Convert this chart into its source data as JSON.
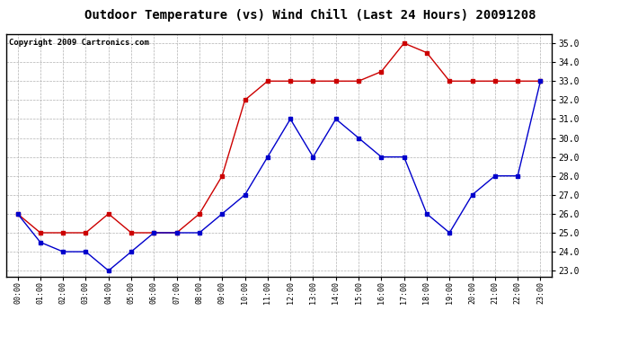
{
  "title": "Outdoor Temperature (vs) Wind Chill (Last 24 Hours) 20091208",
  "copyright": "Copyright 2009 Cartronics.com",
  "x_labels": [
    "00:00",
    "01:00",
    "02:00",
    "03:00",
    "04:00",
    "05:00",
    "06:00",
    "07:00",
    "08:00",
    "09:00",
    "10:00",
    "11:00",
    "12:00",
    "13:00",
    "14:00",
    "15:00",
    "16:00",
    "17:00",
    "18:00",
    "19:00",
    "20:00",
    "21:00",
    "22:00",
    "23:00"
  ],
  "temp_red": [
    26.0,
    25.0,
    25.0,
    25.0,
    26.0,
    25.0,
    25.0,
    25.0,
    26.0,
    28.0,
    32.0,
    33.0,
    33.0,
    33.0,
    33.0,
    33.0,
    33.5,
    35.0,
    34.5,
    33.0,
    33.0,
    33.0,
    33.0,
    33.0
  ],
  "wind_blue": [
    26.0,
    24.5,
    24.0,
    24.0,
    23.0,
    24.0,
    25.0,
    25.0,
    25.0,
    26.0,
    27.0,
    29.0,
    31.0,
    29.0,
    31.0,
    30.0,
    29.0,
    29.0,
    26.0,
    25.0,
    27.0,
    28.0,
    28.0,
    33.0
  ],
  "red_color": "#cc0000",
  "blue_color": "#0000cc",
  "ylim_min": 22.7,
  "ylim_max": 35.5,
  "ytick_min": 23.0,
  "ytick_max": 35.0,
  "ytick_step": 1.0,
  "background_color": "#ffffff",
  "grid_color": "#aaaaaa",
  "title_fontsize": 10,
  "copyright_fontsize": 6.5
}
